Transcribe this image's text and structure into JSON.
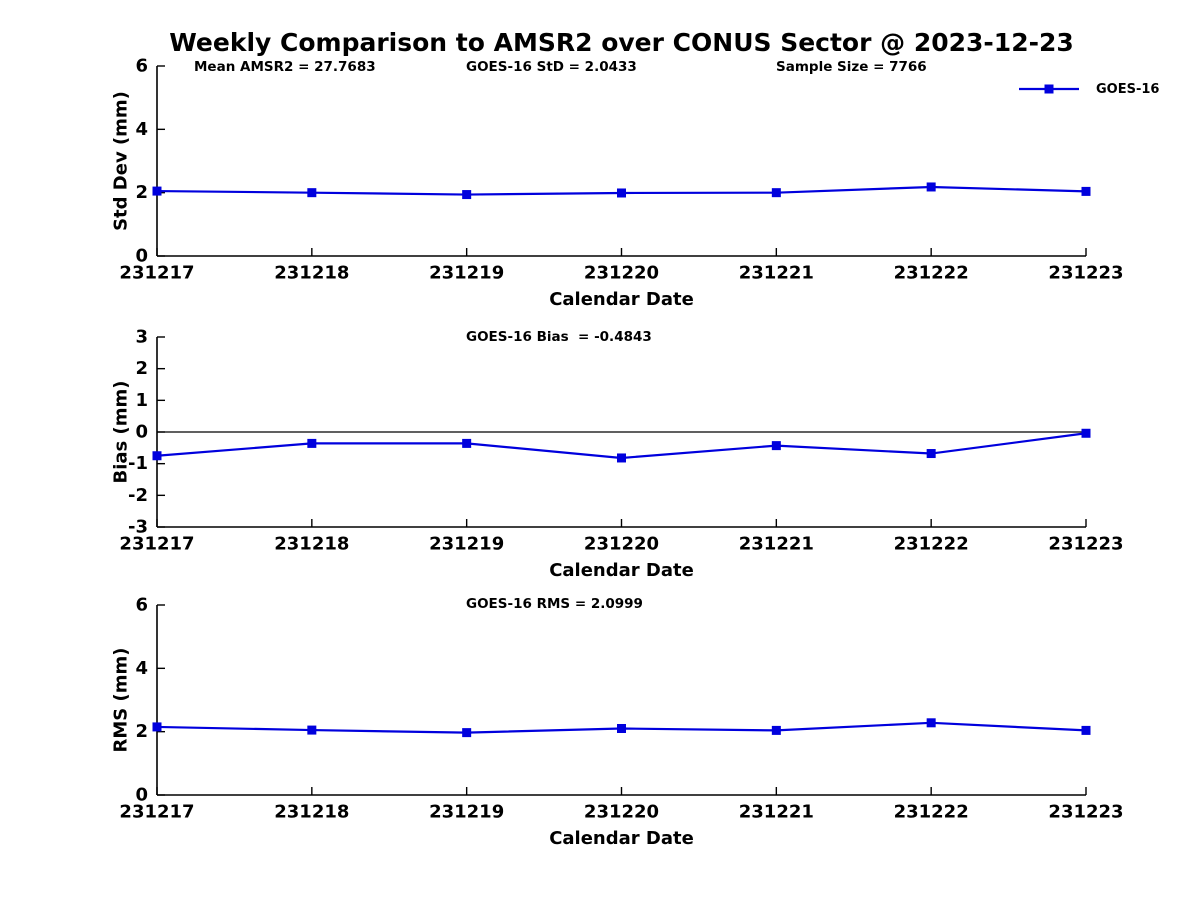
{
  "title": "Weekly Comparison to AMSR2 over CONUS Sector @ 2023-12-23",
  "colors": {
    "line": "#0000DD",
    "text": "#000000",
    "axis": "#000000"
  },
  "legend": {
    "label": "GOES-16",
    "marker": "filled-square",
    "position": "top-right"
  },
  "chart_data": [
    {
      "type": "line",
      "ylabel": "Std Dev (mm)",
      "xlabel": "Calendar Date",
      "annotations": [
        "Mean AMSR2 = 27.7683",
        "GOES-16 StD = 2.0433",
        "Sample Size = 7766"
      ],
      "categories": [
        "231217",
        "231218",
        "231219",
        "231220",
        "231221",
        "231222",
        "231223"
      ],
      "ylim": [
        0,
        6
      ],
      "yticks": [
        0,
        2,
        4,
        6
      ],
      "grid": false,
      "series": [
        {
          "name": "GOES-16",
          "values": [
            2.05,
            2.0,
            1.94,
            1.99,
            2.0,
            2.18,
            2.04
          ]
        }
      ]
    },
    {
      "type": "line",
      "ylabel": "Bias (mm)",
      "xlabel": "Calendar Date",
      "annotations": [
        "GOES-16 Bias  = -0.4843"
      ],
      "categories": [
        "231217",
        "231218",
        "231219",
        "231220",
        "231221",
        "231222",
        "231223"
      ],
      "ylim": [
        -3,
        3
      ],
      "yticks": [
        -3,
        -2,
        -1,
        0,
        1,
        2,
        3
      ],
      "zero_line": true,
      "grid": false,
      "series": [
        {
          "name": "GOES-16",
          "values": [
            -0.75,
            -0.36,
            -0.36,
            -0.82,
            -0.43,
            -0.68,
            -0.04
          ]
        }
      ]
    },
    {
      "type": "line",
      "ylabel": "RMS (mm)",
      "xlabel": "Calendar Date",
      "annotations": [
        "GOES-16 RMS = 2.0999"
      ],
      "categories": [
        "231217",
        "231218",
        "231219",
        "231220",
        "231221",
        "231222",
        "231223"
      ],
      "ylim": [
        0,
        6
      ],
      "yticks": [
        0,
        2,
        4,
        6
      ],
      "grid": false,
      "series": [
        {
          "name": "GOES-16",
          "values": [
            2.15,
            2.05,
            1.97,
            2.1,
            2.04,
            2.28,
            2.04
          ]
        }
      ]
    }
  ]
}
